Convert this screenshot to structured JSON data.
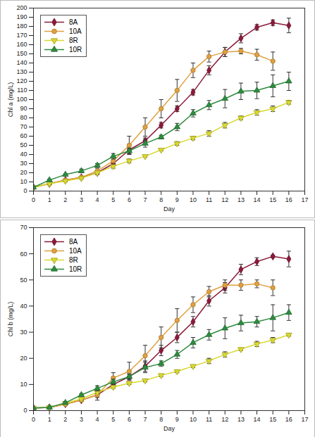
{
  "chart_data": [
    {
      "type": "line",
      "x_label": "Day",
      "y_label": "Chl a (mg/L)",
      "x": [
        0,
        1,
        2,
        3,
        4,
        5,
        6,
        7,
        8,
        9,
        10,
        11,
        12,
        13,
        14,
        15,
        16
      ],
      "xlim": [
        0,
        17
      ],
      "xticks": [
        0,
        1,
        2,
        3,
        4,
        5,
        6,
        7,
        8,
        9,
        10,
        11,
        12,
        13,
        14,
        15,
        16,
        17
      ],
      "ylim": [
        0,
        200
      ],
      "yticks": [
        0,
        10,
        20,
        30,
        40,
        50,
        60,
        70,
        80,
        90,
        100,
        110,
        120,
        130,
        140,
        150,
        160,
        170,
        180,
        190,
        200
      ],
      "grid": false,
      "legend": "upper left",
      "series": [
        {
          "name": "8A",
          "color": "#8B1A3A",
          "marker": "diamond",
          "values": [
            4,
            8,
            12,
            15,
            20,
            30,
            45,
            55,
            72,
            90,
            108,
            132,
            152,
            167,
            179,
            184,
            181
          ],
          "error": [
            0,
            1,
            1,
            1,
            2,
            3,
            4,
            3,
            3,
            3,
            3,
            5,
            5,
            5,
            3,
            3,
            8
          ]
        },
        {
          "name": "10A",
          "color": "#E0A040",
          "marker": "circle",
          "values": [
            4,
            8,
            12,
            15,
            22,
            33,
            50,
            70,
            90,
            110,
            132,
            147,
            152,
            153,
            149,
            142,
            null
          ],
          "error": [
            0,
            1,
            1,
            1,
            3,
            5,
            10,
            10,
            10,
            12,
            8,
            6,
            5,
            3,
            6,
            10,
            null
          ]
        },
        {
          "name": "8R",
          "color": "#D8D830",
          "marker": "triangle-down",
          "values": [
            4,
            8,
            11,
            14,
            20,
            27,
            33,
            38,
            45,
            52,
            58,
            63,
            72,
            80,
            86,
            90,
            97
          ],
          "error": [
            0,
            1,
            1,
            1,
            1,
            2,
            2,
            1,
            1,
            2,
            2,
            3,
            3,
            2,
            3,
            3,
            2
          ]
        },
        {
          "name": "10R",
          "color": "#2E8B3E",
          "marker": "triangle",
          "values": [
            4,
            12,
            18,
            22,
            28,
            38,
            44,
            52,
            59,
            70,
            85,
            94,
            101,
            109,
            110,
            115,
            120
          ],
          "error": [
            0,
            1,
            1,
            2,
            2,
            3,
            3,
            4,
            2,
            4,
            4,
            5,
            10,
            9,
            9,
            12,
            10
          ]
        }
      ]
    },
    {
      "type": "line",
      "x_label": "Day",
      "y_label": "Chl b (mg/L)",
      "x": [
        0,
        1,
        2,
        3,
        4,
        5,
        6,
        7,
        8,
        9,
        10,
        11,
        12,
        13,
        14,
        15,
        16
      ],
      "xlim": [
        0,
        17
      ],
      "xticks": [
        0,
        1,
        2,
        3,
        4,
        5,
        6,
        7,
        8,
        9,
        10,
        11,
        12,
        13,
        14,
        15,
        16,
        17
      ],
      "ylim": [
        0,
        70
      ],
      "yticks": [
        0,
        10,
        20,
        30,
        40,
        50,
        60,
        70
      ],
      "grid": false,
      "legend": "upper left",
      "series": [
        {
          "name": "8A",
          "color": "#8B1A3A",
          "marker": "diamond",
          "values": [
            1,
            1.2,
            2.5,
            4,
            6,
            10,
            13,
            17,
            23,
            28,
            34,
            42,
            47,
            54,
            57,
            59,
            58
          ],
          "error": [
            0,
            0.2,
            0.5,
            0.5,
            1,
            1,
            1,
            2,
            2,
            2,
            2,
            2,
            2,
            2,
            1.5,
            0.5,
            3
          ]
        },
        {
          "name": "10A",
          "color": "#E0A040",
          "marker": "circle",
          "values": [
            1,
            1.2,
            2.5,
            4,
            6,
            12.5,
            15,
            21,
            28,
            34.5,
            40.5,
            45.5,
            48,
            48,
            48.5,
            47,
            null
          ],
          "error": [
            0,
            0.2,
            0.5,
            0.5,
            2,
            2,
            3.5,
            4,
            4,
            4.5,
            3,
            2,
            2,
            2,
            1.5,
            3,
            null
          ]
        },
        {
          "name": "8R",
          "color": "#D8D830",
          "marker": "triangle-down",
          "values": [
            1,
            1.2,
            2.8,
            4.5,
            7,
            9,
            10.5,
            11.5,
            13.5,
            15,
            17,
            19,
            21.5,
            23.5,
            25.5,
            27,
            29
          ],
          "error": [
            0,
            0.2,
            0.3,
            0.3,
            0.5,
            0.5,
            0.5,
            0.5,
            0.5,
            0.5,
            0.5,
            1,
            1,
            0.5,
            1,
            1,
            0.5
          ]
        },
        {
          "name": "10R",
          "color": "#2E8B3E",
          "marker": "triangle",
          "values": [
            1,
            1.2,
            3,
            6,
            8.5,
            11,
            13,
            16.5,
            18,
            21.5,
            26,
            29,
            31.5,
            33.5,
            34,
            35.5,
            37.5
          ],
          "error": [
            0,
            0.2,
            0.5,
            0.5,
            1,
            1,
            1,
            2,
            1,
            1.5,
            2,
            2,
            4,
            3,
            2,
            5,
            3
          ]
        }
      ]
    }
  ]
}
